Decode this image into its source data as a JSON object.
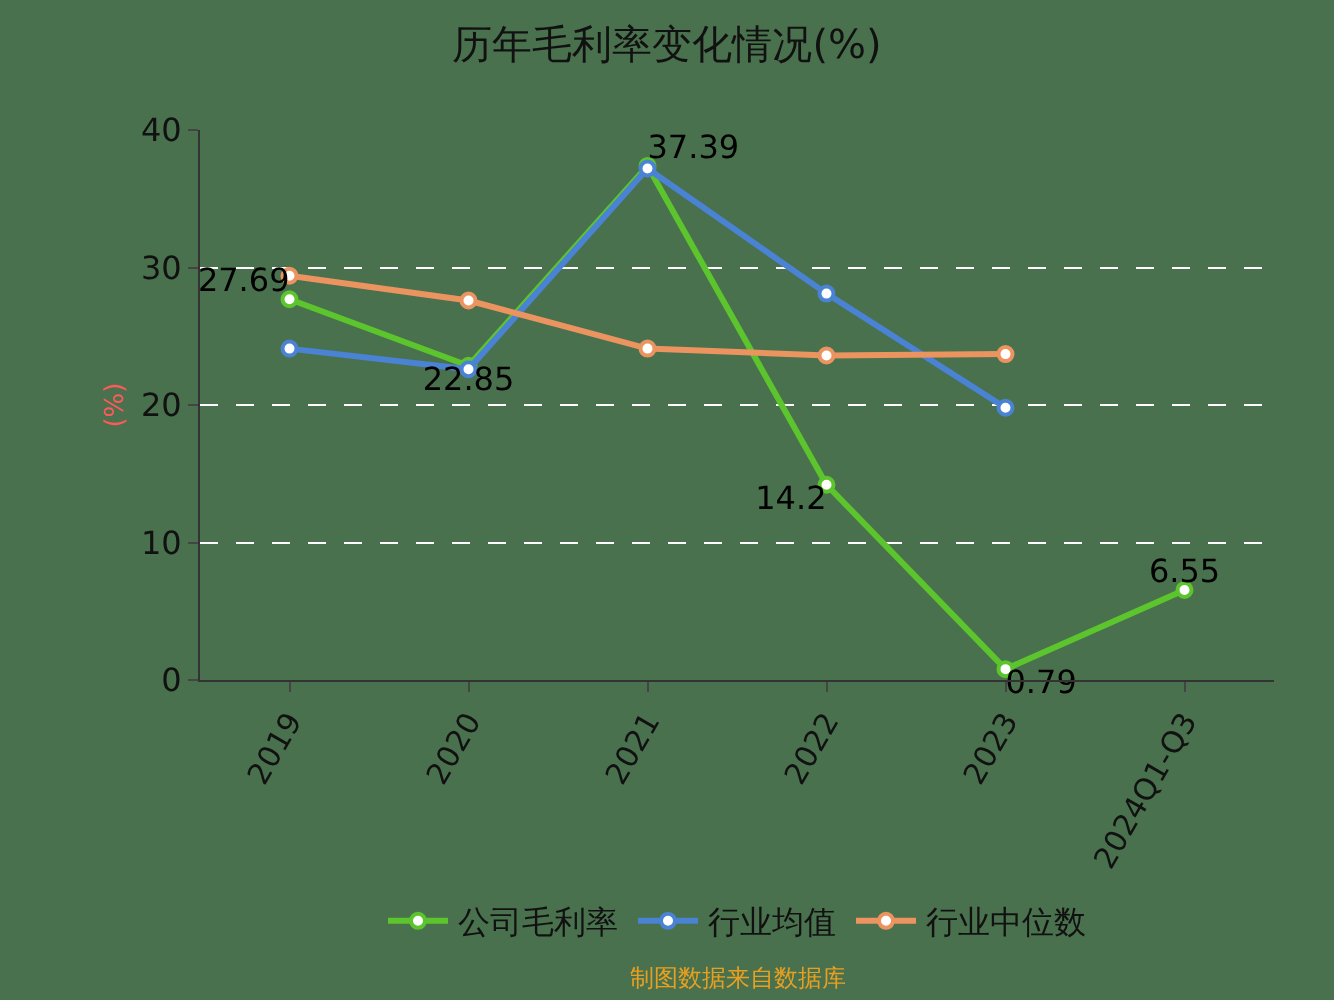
{
  "chart_data": {
    "type": "line",
    "title": "历年毛利率变化情况(%)",
    "ylabel": "(%)",
    "categories": [
      "2019",
      "2020",
      "2021",
      "2022",
      "2023",
      "2024Q1-Q3"
    ],
    "series": [
      {
        "name": "公司毛利率",
        "color": "#5cc42c",
        "values": [
          27.69,
          22.85,
          37.39,
          14.2,
          0.79,
          6.55
        ],
        "value_labels": [
          "27.69",
          "22.85",
          "37.39",
          "14.2",
          "0.79",
          "6.55"
        ]
      },
      {
        "name": "行业均值",
        "color": "#4a82d4",
        "values": [
          24.1,
          22.6,
          37.2,
          28.1,
          19.8,
          null
        ]
      },
      {
        "name": "行业中位数",
        "color": "#ec9460",
        "values": [
          29.4,
          27.6,
          24.1,
          23.6,
          23.7,
          null
        ]
      }
    ],
    "ylim": [
      0,
      40
    ],
    "yticks": [
      0,
      10,
      20,
      30,
      40
    ],
    "grid": "y",
    "legend": "bottom",
    "marker": "circle",
    "line_style": "solid",
    "annotations": [
      "制图数据来自数据库"
    ]
  }
}
